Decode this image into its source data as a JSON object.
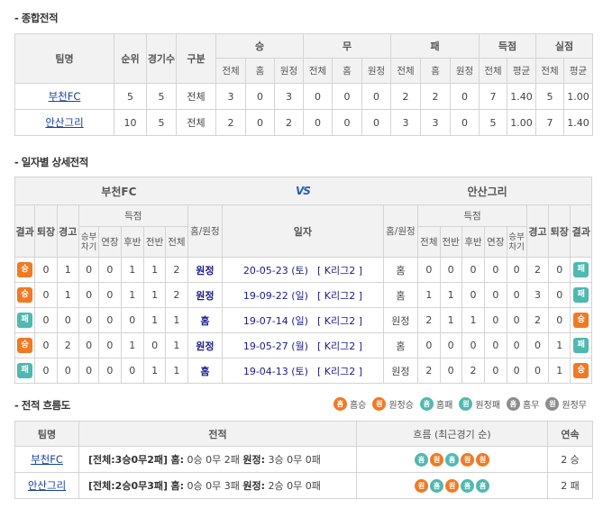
{
  "sections": {
    "overall": "- 종합전적",
    "daily": "- 일자별 상세전적",
    "flow": "- 전적 흐름도"
  },
  "overall": {
    "headers": {
      "team": "팀명",
      "rank": "순위",
      "games": "경기수",
      "type": "구분",
      "win": "승",
      "draw": "무",
      "lose": "패",
      "scored": "득점",
      "conceded": "실점",
      "total": "전체",
      "home": "홈",
      "away": "원정",
      "avg": "평균"
    },
    "rows": [
      {
        "team": "부천FC",
        "rank": "5",
        "games": "5",
        "type": "전체",
        "w_total": "3",
        "w_home": "0",
        "w_away": "3",
        "d_total": "0",
        "d_home": "0",
        "d_away": "0",
        "l_total": "2",
        "l_home": "2",
        "l_away": "0",
        "s_total": "7",
        "s_avg": "1.40",
        "c_total": "5",
        "c_avg": "1.00"
      },
      {
        "team": "안산그리",
        "rank": "10",
        "games": "5",
        "type": "전체",
        "w_total": "2",
        "w_home": "0",
        "w_away": "2",
        "d_total": "0",
        "d_home": "0",
        "d_away": "0",
        "l_total": "3",
        "l_home": "3",
        "l_away": "0",
        "s_total": "5",
        "s_avg": "1.00",
        "c_total": "7",
        "c_avg": "1.40"
      }
    ]
  },
  "daily": {
    "home_team": "부천FC",
    "away_team": "안산그리",
    "vs_label": "VS",
    "headers": {
      "result": "결과",
      "sent_off": "퇴장",
      "warning": "경고",
      "scored": "득점",
      "shootout": "승부차기",
      "extra": "연장",
      "second": "후반",
      "first": "전반",
      "total": "전체",
      "venue": "홈/원정",
      "date": "일자"
    },
    "rows": [
      {
        "l_result": "승",
        "l_red": "0",
        "l_yel": "1",
        "l_so": "0",
        "l_ex": "0",
        "l_2h": "1",
        "l_1h": "1",
        "l_tot": "2",
        "l_venue": "원정",
        "date": "20-05-23 (토)",
        "league": "[ K리그2 ]",
        "r_venue": "홈",
        "r_tot": "0",
        "r_1h": "0",
        "r_2h": "0",
        "r_ex": "0",
        "r_so": "0",
        "r_yel": "2",
        "r_red": "0",
        "r_result": "패"
      },
      {
        "l_result": "승",
        "l_red": "0",
        "l_yel": "1",
        "l_so": "0",
        "l_ex": "0",
        "l_2h": "1",
        "l_1h": "1",
        "l_tot": "2",
        "l_venue": "원정",
        "date": "19-09-22 (일)",
        "league": "[ K리그2 ]",
        "r_venue": "홈",
        "r_tot": "1",
        "r_1h": "1",
        "r_2h": "0",
        "r_ex": "0",
        "r_so": "0",
        "r_yel": "3",
        "r_red": "0",
        "r_result": "패"
      },
      {
        "l_result": "패",
        "l_red": "0",
        "l_yel": "0",
        "l_so": "0",
        "l_ex": "0",
        "l_2h": "0",
        "l_1h": "1",
        "l_tot": "1",
        "l_venue": "홈",
        "date": "19-07-14 (일)",
        "league": "[ K리그2 ]",
        "r_venue": "원정",
        "r_tot": "2",
        "r_1h": "1",
        "r_2h": "1",
        "r_ex": "0",
        "r_so": "0",
        "r_yel": "2",
        "r_red": "0",
        "r_result": "승"
      },
      {
        "l_result": "승",
        "l_red": "0",
        "l_yel": "2",
        "l_so": "0",
        "l_ex": "0",
        "l_2h": "1",
        "l_1h": "0",
        "l_tot": "1",
        "l_venue": "원정",
        "date": "19-05-27 (월)",
        "league": "[ K리그2 ]",
        "r_venue": "홈",
        "r_tot": "0",
        "r_1h": "0",
        "r_2h": "0",
        "r_ex": "0",
        "r_so": "0",
        "r_yel": "0",
        "r_red": "1",
        "r_result": "패"
      },
      {
        "l_result": "패",
        "l_red": "0",
        "l_yel": "0",
        "l_so": "0",
        "l_ex": "0",
        "l_2h": "0",
        "l_1h": "1",
        "l_tot": "1",
        "l_venue": "홈",
        "date": "19-04-13 (토)",
        "league": "[ K리그2 ]",
        "r_venue": "원정",
        "r_tot": "2",
        "r_1h": "0",
        "r_2h": "2",
        "r_ex": "0",
        "r_so": "0",
        "r_yel": "0",
        "r_red": "1",
        "r_result": "승"
      }
    ]
  },
  "legend": [
    {
      "glyph": "홈",
      "style": "c-o",
      "label": "홈승"
    },
    {
      "glyph": "원",
      "style": "c-o",
      "label": "원정승"
    },
    {
      "glyph": "홈",
      "style": "c-t",
      "label": "홈패"
    },
    {
      "glyph": "원",
      "style": "c-t",
      "label": "원정패"
    },
    {
      "glyph": "홈",
      "style": "c-g",
      "label": "홈무"
    },
    {
      "glyph": "원",
      "style": "c-g",
      "label": "원정무"
    }
  ],
  "flow": {
    "headers": {
      "team": "팀명",
      "record": "전적",
      "trend": "흐름 (최근경기 순)",
      "streak": "연속"
    },
    "rows": [
      {
        "team": "부천FC",
        "record_total": "[전체:3승0무2패]",
        "record_home_label": "홈:",
        "record_home": "0승 0무 2패",
        "record_away_label": "원정:",
        "record_away": "3승 0무 0패",
        "trend": [
          {
            "glyph": "홈",
            "style": "c-t"
          },
          {
            "glyph": "원",
            "style": "c-o"
          },
          {
            "glyph": "홈",
            "style": "c-t"
          },
          {
            "glyph": "원",
            "style": "c-o"
          },
          {
            "glyph": "원",
            "style": "c-o"
          }
        ],
        "streak": "2 승"
      },
      {
        "team": "안산그리",
        "record_total": "[전체:2승0무3패]",
        "record_home_label": "홈:",
        "record_home": "0승 0무 3패",
        "record_away_label": "원정:",
        "record_away": "2승 0무 0패",
        "trend": [
          {
            "glyph": "원",
            "style": "c-o"
          },
          {
            "glyph": "홈",
            "style": "c-t"
          },
          {
            "glyph": "원",
            "style": "c-o"
          },
          {
            "glyph": "홈",
            "style": "c-t"
          },
          {
            "glyph": "홈",
            "style": "c-t"
          }
        ],
        "streak": "2 패"
      }
    ]
  }
}
